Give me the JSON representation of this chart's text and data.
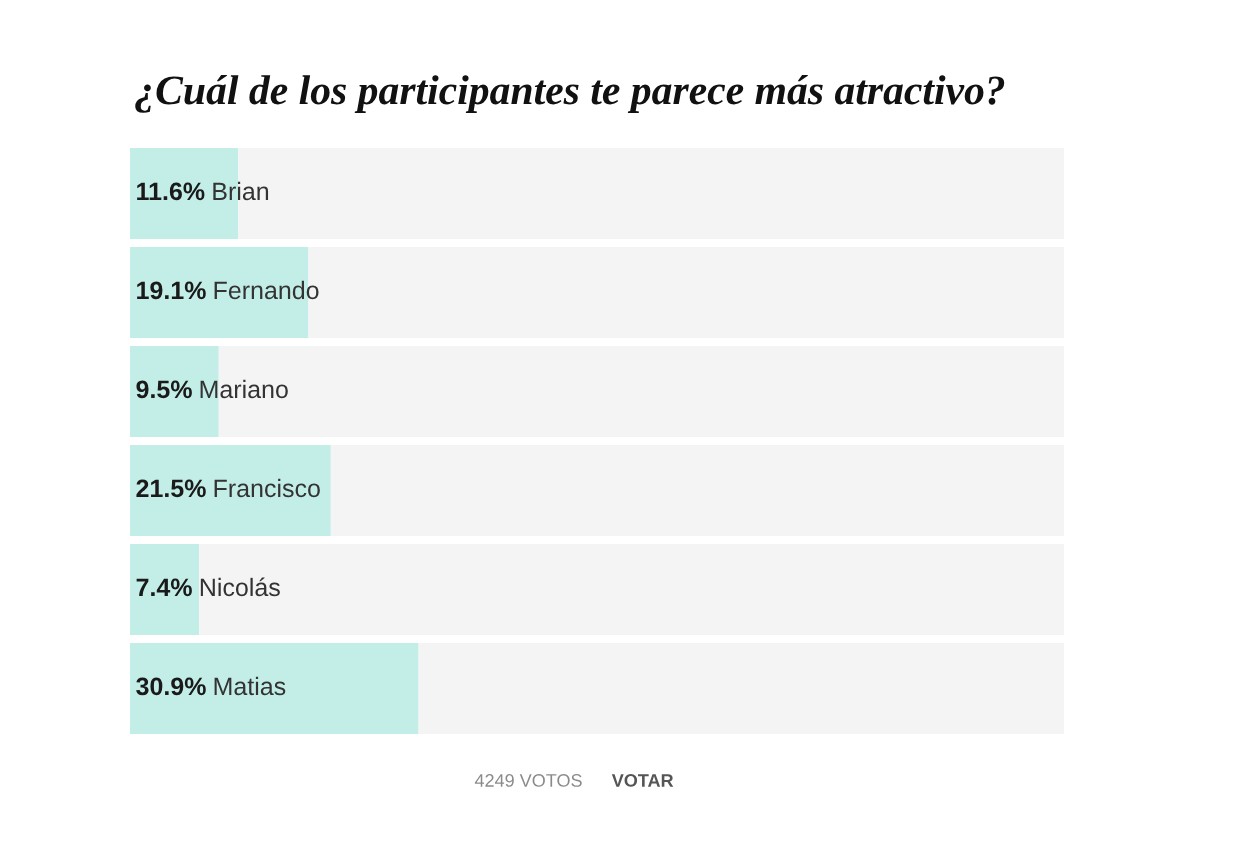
{
  "chart_data": {
    "type": "bar",
    "orientation": "horizontal",
    "stacked": true,
    "title": "¿Cuál de los participantes te parece más atractivo?",
    "categories": [
      "Brian",
      "Fernando",
      "Mariano",
      "Francisco",
      "Nicolás",
      "Matias"
    ],
    "series": [
      {
        "color": "#c3eee8",
        "values": [
          11.6,
          19.1,
          9.5,
          21.5,
          7.4,
          30.9
        ],
        "value_labels": [
          "11.6%",
          "19.1%",
          "9.5%",
          "21.5%",
          "7.4%",
          "30.9%"
        ]
      },
      {
        "color": "#f4f4f4",
        "values": [
          88.4,
          80.9,
          90.5,
          78.5,
          92.6,
          69.1
        ]
      }
    ],
    "xlim": [
      0,
      100
    ],
    "tick_labels": false,
    "annotations": [
      "4249 VOTOS",
      "VOTAR"
    ]
  }
}
